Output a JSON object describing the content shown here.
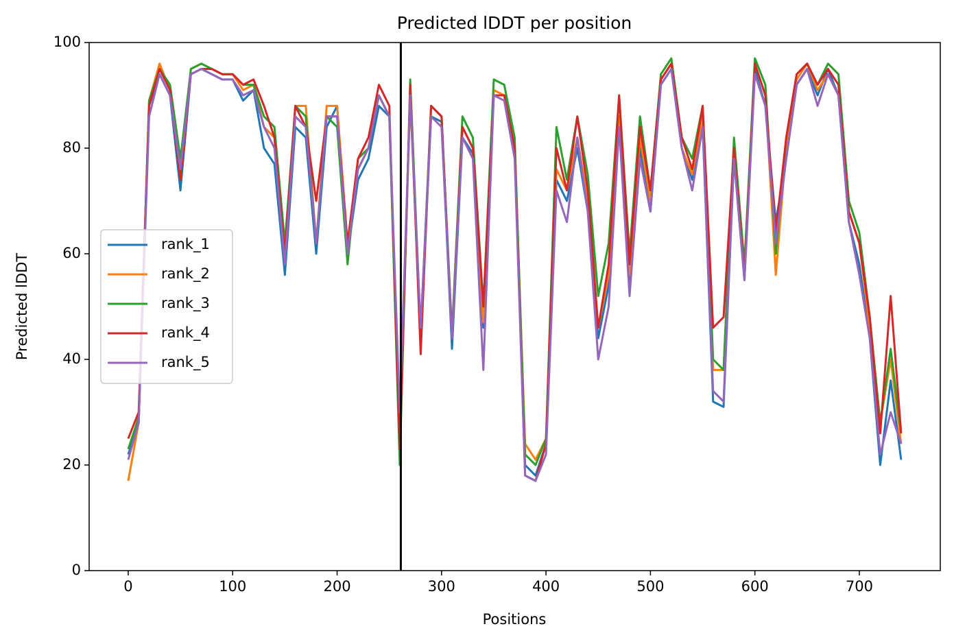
{
  "chart_data": {
    "type": "line",
    "title": "Predicted lDDT per position",
    "x_label": "Positions",
    "y_label": "Predicted lDDT",
    "x": [
      0,
      10,
      20,
      30,
      40,
      50,
      60,
      70,
      80,
      90,
      100,
      110,
      120,
      130,
      140,
      150,
      160,
      170,
      180,
      190,
      200,
      210,
      220,
      230,
      240,
      250,
      260,
      270,
      280,
      290,
      300,
      310,
      320,
      330,
      340,
      350,
      360,
      370,
      380,
      390,
      400,
      410,
      420,
      430,
      440,
      450,
      460,
      470,
      480,
      490,
      500,
      510,
      520,
      530,
      540,
      550,
      560,
      570,
      580,
      590,
      600,
      610,
      620,
      630,
      640,
      650,
      660,
      670,
      680,
      690,
      700,
      710,
      720,
      730,
      740
    ],
    "series": [
      {
        "name": "rank_1",
        "color": "#1f77b4",
        "values": [
          22,
          28,
          88,
          94,
          90,
          72,
          94,
          95,
          94,
          93,
          93,
          89,
          91,
          80,
          77,
          56,
          84,
          82,
          60,
          84,
          88,
          60,
          74,
          78,
          88,
          86,
          25,
          90,
          44,
          86,
          85,
          42,
          82,
          79,
          46,
          90,
          90,
          80,
          20,
          18,
          24,
          74,
          70,
          80,
          68,
          44,
          54,
          84,
          54,
          80,
          68,
          92,
          95,
          80,
          74,
          84,
          32,
          31,
          78,
          55,
          95,
          88,
          66,
          78,
          92,
          95,
          90,
          95,
          90,
          66,
          58,
          44,
          20,
          36,
          21
        ]
      },
      {
        "name": "rank_2",
        "color": "#ff7f0e",
        "values": [
          17,
          28,
          89,
          96,
          91,
          76,
          95,
          96,
          95,
          94,
          94,
          91,
          92,
          84,
          82,
          60,
          88,
          88,
          62,
          88,
          88,
          62,
          76,
          80,
          90,
          86,
          24,
          90,
          44,
          88,
          86,
          44,
          84,
          80,
          47,
          91,
          90,
          80,
          24,
          21,
          25,
          76,
          72,
          82,
          70,
          46,
          56,
          86,
          56,
          82,
          70,
          93,
          96,
          80,
          75,
          86,
          38,
          38,
          80,
          56,
          96,
          90,
          56,
          80,
          93,
          96,
          91,
          94,
          90,
          68,
          62,
          46,
          28,
          40,
          24
        ]
      },
      {
        "name": "rank_3",
        "color": "#2ca02c",
        "values": [
          23,
          29,
          89,
          95,
          92,
          78,
          95,
          96,
          95,
          94,
          94,
          92,
          92,
          86,
          84,
          62,
          88,
          86,
          62,
          86,
          84,
          58,
          78,
          80,
          90,
          86,
          20,
          93,
          45,
          88,
          86,
          45,
          86,
          82,
          50,
          93,
          92,
          82,
          22,
          20,
          25,
          84,
          74,
          86,
          75,
          52,
          62,
          90,
          60,
          86,
          72,
          94,
          97,
          82,
          78,
          88,
          40,
          38,
          82,
          58,
          97,
          92,
          60,
          82,
          94,
          96,
          92,
          96,
          94,
          70,
          64,
          48,
          28,
          42,
          26
        ]
      },
      {
        "name": "rank_4",
        "color": "#d62728",
        "values": [
          25,
          30,
          88,
          95,
          91,
          74,
          94,
          95,
          95,
          94,
          94,
          92,
          93,
          88,
          82,
          60,
          88,
          84,
          70,
          86,
          86,
          62,
          78,
          82,
          92,
          88,
          23,
          92,
          41,
          88,
          86,
          44,
          84,
          80,
          50,
          90,
          90,
          80,
          18,
          17,
          24,
          80,
          72,
          86,
          72,
          46,
          58,
          90,
          58,
          84,
          72,
          93,
          96,
          82,
          76,
          88,
          46,
          48,
          80,
          56,
          96,
          90,
          64,
          82,
          94,
          96,
          92,
          95,
          92,
          68,
          62,
          48,
          26,
          52,
          26
        ]
      },
      {
        "name": "rank_5",
        "color": "#9467bd",
        "values": [
          21,
          28,
          86,
          94,
          90,
          76,
          94,
          95,
          94,
          93,
          93,
          90,
          91,
          84,
          80,
          58,
          86,
          84,
          62,
          86,
          86,
          60,
          76,
          80,
          90,
          86,
          30,
          90,
          46,
          86,
          84,
          44,
          82,
          78,
          38,
          90,
          89,
          78,
          18,
          17,
          22,
          72,
          66,
          82,
          68,
          40,
          50,
          84,
          52,
          78,
          68,
          92,
          95,
          80,
          72,
          84,
          34,
          32,
          78,
          55,
          94,
          88,
          62,
          78,
          92,
          95,
          88,
          94,
          90,
          66,
          56,
          44,
          22,
          30,
          24
        ]
      }
    ],
    "vlines": [
      261
    ],
    "vline_color": "#000000",
    "xlim": [
      -37.4,
      777.5
    ],
    "ylim": [
      0,
      100
    ],
    "xticks": [
      0,
      100,
      200,
      300,
      400,
      500,
      600,
      700
    ],
    "yticks": [
      0,
      20,
      40,
      60,
      80,
      100
    ],
    "legend": "center left",
    "grid": false
  }
}
